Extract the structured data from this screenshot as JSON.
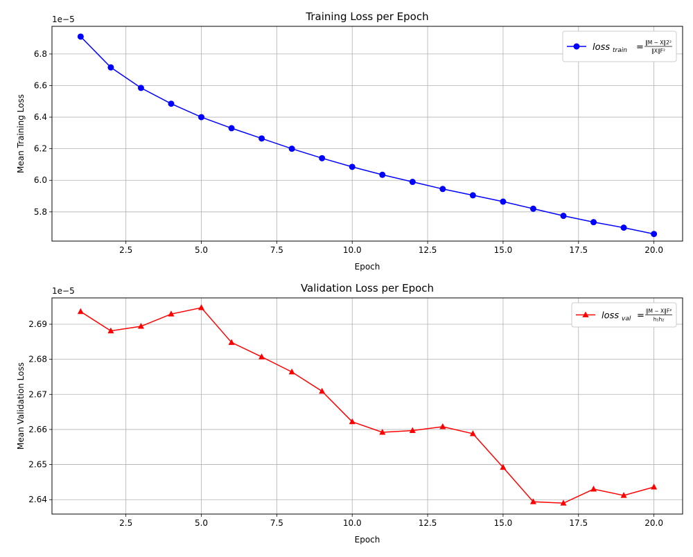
{
  "chart_data": [
    {
      "type": "line",
      "title": "Training Loss per Epoch",
      "xlabel": "Epoch",
      "ylabel": "Mean Training Loss",
      "offset_text": "1e−5",
      "xlim": [
        0.05,
        20.95
      ],
      "ylim": [
        5.615,
        6.975
      ],
      "xticks": [
        2.5,
        5.0,
        7.5,
        10.0,
        12.5,
        15.0,
        17.5,
        20.0
      ],
      "xtick_labels": [
        "2.5",
        "5.0",
        "7.5",
        "10.0",
        "12.5",
        "15.0",
        "17.5",
        "20.0"
      ],
      "yticks": [
        5.8,
        6.0,
        6.2,
        6.4,
        6.6,
        6.8
      ],
      "ytick_labels": [
        "5.8",
        "6.0",
        "6.2",
        "6.4",
        "6.6",
        "6.8"
      ],
      "grid": true,
      "legend_position": "top-right",
      "series": [
        {
          "name": "",
          "legend_label": {
            "main": "loss",
            "sub": "train",
            "eq": "=",
            "num": "‖M − X‖2²",
            "den": "‖X‖F²"
          },
          "color": "#0000ff",
          "marker": "circle",
          "x": [
            1,
            2,
            3,
            4,
            5,
            6,
            7,
            8,
            9,
            10,
            11,
            12,
            13,
            14,
            15,
            16,
            17,
            18,
            19,
            20
          ],
          "y": [
            6.91,
            6.715,
            6.585,
            6.485,
            6.4,
            6.33,
            6.265,
            6.2,
            6.14,
            6.085,
            6.035,
            5.99,
            5.945,
            5.905,
            5.865,
            5.82,
            5.775,
            5.735,
            5.7,
            5.66
          ]
        }
      ]
    },
    {
      "type": "line",
      "title": "Validation Loss per Epoch",
      "xlabel": "Epoch",
      "ylabel": "Mean Validation Loss",
      "offset_text": "1e−5",
      "xlim": [
        0.05,
        20.95
      ],
      "ylim": [
        2.6359,
        2.6975
      ],
      "xticks": [
        2.5,
        5.0,
        7.5,
        10.0,
        12.5,
        15.0,
        17.5,
        20.0
      ],
      "xtick_labels": [
        "2.5",
        "5.0",
        "7.5",
        "10.0",
        "12.5",
        "15.0",
        "17.5",
        "20.0"
      ],
      "yticks": [
        2.64,
        2.65,
        2.66,
        2.67,
        2.68,
        2.69
      ],
      "ytick_labels": [
        "2.64",
        "2.65",
        "2.66",
        "2.67",
        "2.68",
        "2.69"
      ],
      "grid": true,
      "legend_position": "top-right",
      "series": [
        {
          "name": "",
          "legend_label": {
            "main": "loss",
            "sub": "val",
            "eq": "=",
            "num": "‖M − X‖F²",
            "den": "h₁h₂"
          },
          "color": "#ff0000",
          "marker": "triangle",
          "x": [
            1,
            2,
            3,
            4,
            5,
            6,
            7,
            8,
            9,
            10,
            11,
            12,
            13,
            14,
            15,
            16,
            17,
            18,
            19,
            20
          ],
          "y": [
            2.6936,
            2.6881,
            2.6894,
            2.6929,
            2.6947,
            2.6848,
            2.6807,
            2.6764,
            2.6709,
            2.6622,
            2.6592,
            2.6597,
            2.6608,
            2.6588,
            2.6492,
            2.6394,
            2.639,
            2.643,
            2.6412,
            2.6436
          ]
        }
      ]
    }
  ]
}
